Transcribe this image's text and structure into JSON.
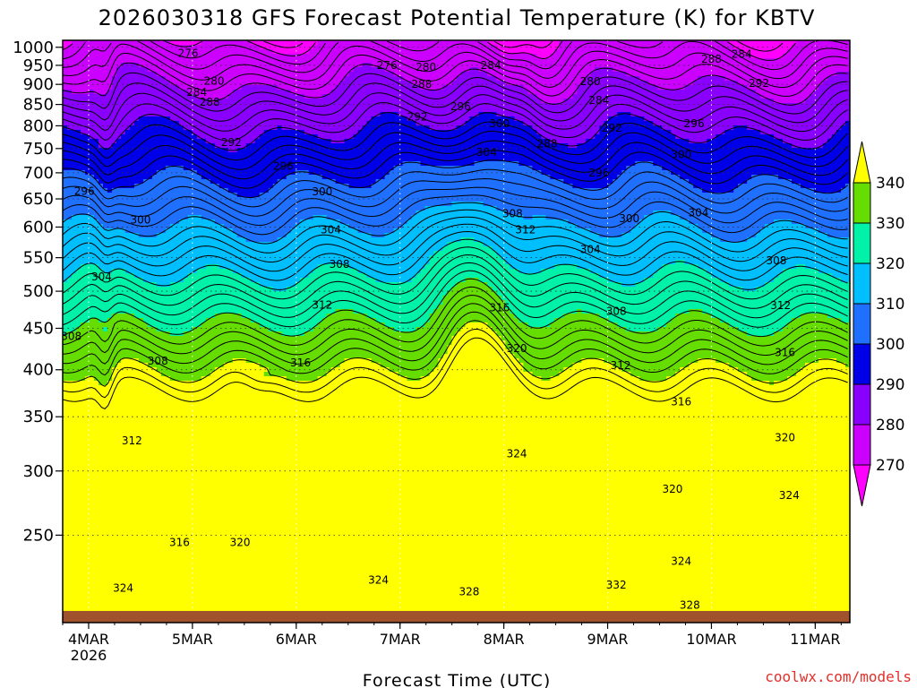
{
  "chart_data": {
    "type": "heatmap",
    "title": "2026030318 GFS Forecast Potential Temperature (K) for KBTV",
    "xlabel": "Forecast Time (UTC)",
    "ylabel": "",
    "credit": "coolwx.com/models",
    "y_axis": {
      "units": "hPa",
      "reversed": true,
      "range": [
        1020,
        195
      ],
      "ticks": [
        250,
        300,
        350,
        400,
        450,
        500,
        550,
        600,
        650,
        700,
        750,
        800,
        850,
        900,
        950,
        1000
      ],
      "tick_labels": [
        "250",
        "300",
        "350",
        "400",
        "450",
        "500",
        "550",
        "600",
        "650",
        "700",
        "750",
        "800",
        "850",
        "900",
        "950",
        "1000"
      ]
    },
    "x_axis": {
      "units": "hours since 2026-03-03 18Z",
      "range": [
        0,
        182
      ],
      "ticks": [
        6,
        30,
        54,
        78,
        102,
        126,
        150,
        174
      ],
      "tick_labels": [
        "4MAR",
        "5MAR",
        "6MAR",
        "7MAR",
        "8MAR",
        "9MAR",
        "10MAR",
        "11MAR"
      ],
      "year_label": "2026"
    },
    "colorbar": {
      "levels": [
        270,
        280,
        290,
        300,
        310,
        320,
        330,
        340
      ],
      "labels": [
        "270",
        "280",
        "290",
        "300",
        "310",
        "320",
        "330",
        "340"
      ],
      "colors": [
        "#ff00ff",
        "#cc00ff",
        "#8a00ff",
        "#0000e8",
        "#2070ff",
        "#00bfff",
        "#00f2a8",
        "#66dd00",
        "#ffff00"
      ]
    },
    "contour_labels": [
      {
        "text": "324",
        "x": 14,
        "p": 215
      },
      {
        "text": "316",
        "x": 27,
        "p": 245
      },
      {
        "text": "320",
        "x": 41,
        "p": 245
      },
      {
        "text": "324",
        "x": 73,
        "p": 220
      },
      {
        "text": "328",
        "x": 94,
        "p": 213
      },
      {
        "text": "332",
        "x": 128,
        "p": 217
      },
      {
        "text": "328",
        "x": 145,
        "p": 205
      },
      {
        "text": "324",
        "x": 143,
        "p": 232
      },
      {
        "text": "320",
        "x": 141,
        "p": 285
      },
      {
        "text": "324",
        "x": 168,
        "p": 280
      },
      {
        "text": "320",
        "x": 167,
        "p": 330
      },
      {
        "text": "324",
        "x": 105,
        "p": 315
      },
      {
        "text": "316",
        "x": 143,
        "p": 365
      },
      {
        "text": "316",
        "x": 167,
        "p": 420
      },
      {
        "text": "312",
        "x": 129,
        "p": 405
      },
      {
        "text": "312",
        "x": 166,
        "p": 480
      },
      {
        "text": "308",
        "x": 165,
        "p": 545
      },
      {
        "text": "304",
        "x": 147,
        "p": 625
      },
      {
        "text": "300",
        "x": 143,
        "p": 737
      },
      {
        "text": "296",
        "x": 146,
        "p": 805
      },
      {
        "text": "292",
        "x": 161,
        "p": 903
      },
      {
        "text": "288",
        "x": 150,
        "p": 967
      },
      {
        "text": "284",
        "x": 157,
        "p": 980
      },
      {
        "text": "312",
        "x": 16,
        "p": 327
      },
      {
        "text": "308",
        "x": 2,
        "p": 440
      },
      {
        "text": "308",
        "x": 22,
        "p": 410
      },
      {
        "text": "304",
        "x": 9,
        "p": 521
      },
      {
        "text": "300",
        "x": 18,
        "p": 612
      },
      {
        "text": "296",
        "x": 5,
        "p": 664
      },
      {
        "text": "316",
        "x": 55,
        "p": 408
      },
      {
        "text": "312",
        "x": 60,
        "p": 481
      },
      {
        "text": "308",
        "x": 64,
        "p": 540
      },
      {
        "text": "304",
        "x": 62,
        "p": 595
      },
      {
        "text": "300",
        "x": 60,
        "p": 663
      },
      {
        "text": "296",
        "x": 51,
        "p": 713
      },
      {
        "text": "292",
        "x": 39,
        "p": 763
      },
      {
        "text": "288",
        "x": 34,
        "p": 856
      },
      {
        "text": "284",
        "x": 31,
        "p": 880
      },
      {
        "text": "280",
        "x": 35,
        "p": 908
      },
      {
        "text": "276",
        "x": 29,
        "p": 983
      },
      {
        "text": "276",
        "x": 75,
        "p": 950
      },
      {
        "text": "280",
        "x": 84,
        "p": 945
      },
      {
        "text": "288",
        "x": 83,
        "p": 900
      },
      {
        "text": "292",
        "x": 82,
        "p": 820
      },
      {
        "text": "296",
        "x": 92,
        "p": 845
      },
      {
        "text": "304",
        "x": 98,
        "p": 742
      },
      {
        "text": "300",
        "x": 101,
        "p": 805
      },
      {
        "text": "284",
        "x": 99,
        "p": 950
      },
      {
        "text": "308",
        "x": 104,
        "p": 623
      },
      {
        "text": "312",
        "x": 107,
        "p": 595
      },
      {
        "text": "316",
        "x": 101,
        "p": 477
      },
      {
        "text": "320",
        "x": 105,
        "p": 425
      },
      {
        "text": "308",
        "x": 128,
        "p": 472
      },
      {
        "text": "304",
        "x": 122,
        "p": 563
      },
      {
        "text": "300",
        "x": 131,
        "p": 615
      },
      {
        "text": "296",
        "x": 124,
        "p": 700
      },
      {
        "text": "292",
        "x": 127,
        "p": 795
      },
      {
        "text": "288",
        "x": 112,
        "p": 760
      },
      {
        "text": "284",
        "x": 124,
        "p": 860
      },
      {
        "text": "280",
        "x": 122,
        "p": 907
      }
    ]
  }
}
